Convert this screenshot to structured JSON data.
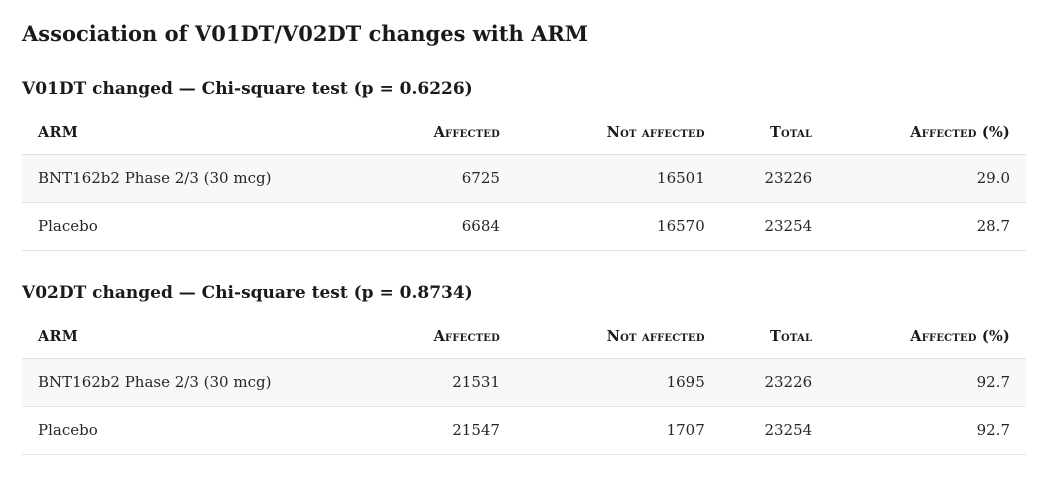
{
  "page": {
    "title": "Association of V01DT/V02DT changes with ARM"
  },
  "colors": {
    "text": "#262626",
    "heading_text": "#1a1a1a",
    "row_stripe": "#f8f8f8",
    "row_border": "#e2e2e2"
  },
  "sections": [
    {
      "heading": "V01DT changed — Chi-square test (p = 0.6226)",
      "table": {
        "columns": [
          "ARM",
          "Affected",
          "Not affected",
          "Total",
          "Affected (%)"
        ],
        "rows": [
          [
            "BNT162b2 Phase 2/3 (30 mcg)",
            "6725",
            "16501",
            "23226",
            "29.0"
          ],
          [
            "Placebo",
            "6684",
            "16570",
            "23254",
            "28.7"
          ]
        ]
      }
    },
    {
      "heading": "V02DT changed — Chi-square test (p = 0.8734)",
      "table": {
        "columns": [
          "ARM",
          "Affected",
          "Not affected",
          "Total",
          "Affected (%)"
        ],
        "rows": [
          [
            "BNT162b2 Phase 2/3 (30 mcg)",
            "21531",
            "1695",
            "23226",
            "92.7"
          ],
          [
            "Placebo",
            "21547",
            "1707",
            "23254",
            "92.7"
          ]
        ]
      }
    }
  ]
}
